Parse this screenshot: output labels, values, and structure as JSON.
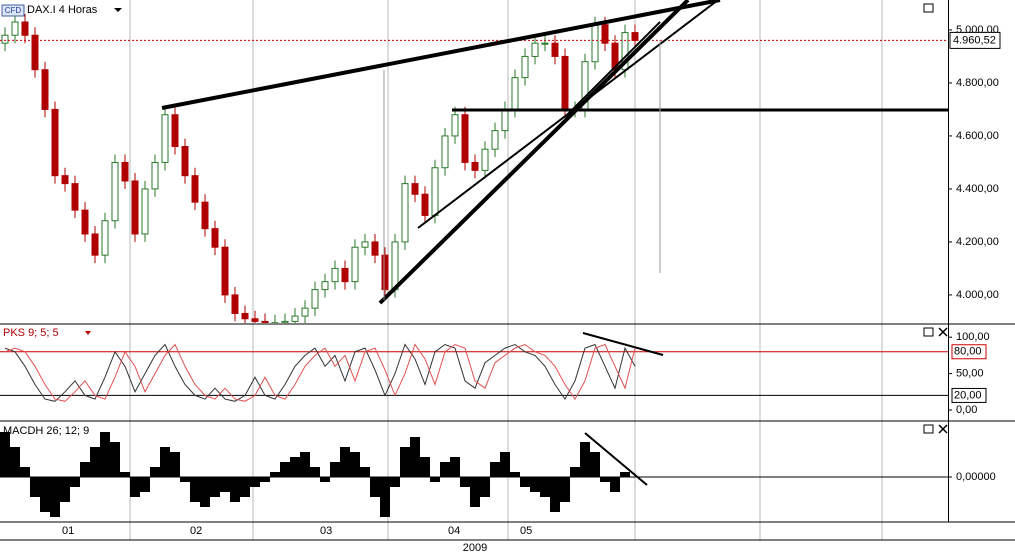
{
  "chart_data": [
    {
      "type": "candlestick",
      "badge": "CFD",
      "title": "DAX.I 4 Horas",
      "open": [
        4950,
        4980,
        5030,
        4980,
        4850,
        4700,
        4450,
        4420,
        4320,
        4230,
        4150,
        4280,
        4500,
        4430,
        4230,
        4400,
        4500,
        4680,
        4560,
        4450,
        4350,
        4250,
        4180,
        4000,
        3930,
        3910,
        3900,
        3890,
        3895,
        3900,
        3920,
        3950,
        4020,
        4050,
        4100,
        4050,
        4180,
        4200,
        4150,
        4020,
        4200,
        4420,
        4380,
        4300,
        4480,
        4600,
        4680,
        4500,
        4470,
        4550,
        4620,
        4700,
        4820,
        4900,
        4950,
        4950,
        4900,
        4700,
        4700,
        4880,
        5020,
        4950,
        4850,
        4990
      ],
      "high": [
        5010,
        5060,
        5060,
        5010,
        4880,
        4730,
        4480,
        4450,
        4350,
        4260,
        4310,
        4530,
        4530,
        4460,
        4430,
        4530,
        4710,
        4710,
        4590,
        4480,
        4380,
        4280,
        4210,
        4030,
        3960,
        3940,
        3930,
        3925,
        3930,
        3950,
        3980,
        4050,
        4080,
        4130,
        4130,
        4210,
        4230,
        4230,
        4180,
        4230,
        4450,
        4450,
        4410,
        4510,
        4630,
        4710,
        4710,
        4530,
        4580,
        4650,
        4730,
        4850,
        4930,
        4980,
        4980,
        4980,
        4930,
        4730,
        4910,
        5050,
        5050,
        4980,
        5020,
        5020
      ],
      "low": [
        4920,
        4950,
        4950,
        4820,
        4670,
        4420,
        4390,
        4290,
        4200,
        4120,
        4120,
        4250,
        4400,
        4200,
        4200,
        4370,
        4470,
        4530,
        4420,
        4320,
        4220,
        4150,
        3970,
        3900,
        3880,
        3870,
        3860,
        3860,
        3865,
        3870,
        3890,
        3920,
        3990,
        4020,
        4020,
        4020,
        4150,
        4120,
        3990,
        3990,
        4170,
        4350,
        4270,
        4270,
        4450,
        4570,
        4470,
        4440,
        4440,
        4520,
        4590,
        4670,
        4790,
        4870,
        4920,
        4870,
        4670,
        4670,
        4670,
        4850,
        4920,
        4820,
        4820,
        4930
      ],
      "close": [
        4980,
        5030,
        4980,
        4850,
        4700,
        4450,
        4420,
        4320,
        4230,
        4150,
        4280,
        4500,
        4430,
        4230,
        4400,
        4500,
        4680,
        4560,
        4450,
        4350,
        4250,
        4180,
        4000,
        3930,
        3910,
        3900,
        3890,
        3895,
        3900,
        3920,
        3950,
        4020,
        4050,
        4100,
        4050,
        4180,
        4200,
        4150,
        4020,
        4200,
        4420,
        4380,
        4300,
        4480,
        4600,
        4680,
        4500,
        4470,
        4550,
        4620,
        4700,
        4820,
        4900,
        4950,
        4950,
        4900,
        4700,
        4700,
        4880,
        5020,
        4950,
        4850,
        4990,
        4960
      ],
      "up_color": "#2a7a2a",
      "down_color": "#b00000",
      "ylim": [
        3894,
        5113
      ],
      "yticks": [
        {
          "value": 5000,
          "label": "5.000,00"
        },
        {
          "value": 4800,
          "label": "4.800,00"
        },
        {
          "value": 4600,
          "label": "4.600,00"
        },
        {
          "value": 4400,
          "label": "4.400,00"
        },
        {
          "value": 4200,
          "label": "4.200,00"
        },
        {
          "value": 4000,
          "label": "4.000,00"
        }
      ],
      "last_price": {
        "value": 4960.52,
        "label": "4.960,52"
      }
    },
    {
      "type": "line",
      "title": "PKS 9; 5; 5",
      "series": [
        {
          "color": "#333333",
          "values": [
            85,
            80,
            60,
            35,
            15,
            12,
            25,
            40,
            20,
            15,
            45,
            80,
            60,
            25,
            50,
            75,
            90,
            60,
            35,
            20,
            15,
            30,
            15,
            12,
            20,
            45,
            20,
            15,
            35,
            60,
            75,
            85,
            60,
            75,
            40,
            80,
            85,
            55,
            20,
            50,
            90,
            70,
            35,
            80,
            90,
            85,
            40,
            30,
            65,
            75,
            85,
            90,
            80,
            75,
            60,
            35,
            15,
            40,
            85,
            90,
            60,
            30,
            85,
            60
          ]
        },
        {
          "color": "#e05050",
          "values": [
            80,
            85,
            80,
            60,
            35,
            15,
            12,
            25,
            40,
            20,
            15,
            45,
            80,
            60,
            25,
            50,
            75,
            90,
            60,
            35,
            20,
            15,
            30,
            15,
            12,
            20,
            45,
            20,
            15,
            35,
            60,
            75,
            85,
            60,
            75,
            40,
            80,
            85,
            55,
            20,
            50,
            90,
            70,
            35,
            80,
            90,
            85,
            40,
            30,
            65,
            75,
            85,
            90,
            80,
            75,
            60,
            35,
            15,
            40,
            85,
            90,
            60,
            30,
            85
          ]
        }
      ],
      "ylim": [
        -11,
        114
      ],
      "yticks": [
        {
          "value": 100,
          "label": "100,00"
        },
        {
          "value": 50,
          "label": "50,00"
        },
        {
          "value": 0,
          "label": "0,00"
        }
      ],
      "levels": [
        {
          "value": 80,
          "label": "80,00",
          "color": "#cc0000"
        },
        {
          "value": 20,
          "label": "20,00",
          "color": "#000000"
        }
      ]
    },
    {
      "type": "bar",
      "title": "MACDH 26; 12; 9",
      "values": [
        45,
        30,
        10,
        -20,
        -35,
        -40,
        -25,
        -10,
        15,
        30,
        45,
        35,
        5,
        -20,
        -15,
        10,
        30,
        25,
        -5,
        -25,
        -30,
        -20,
        -15,
        -25,
        -20,
        -10,
        -5,
        5,
        15,
        20,
        25,
        10,
        -5,
        15,
        30,
        25,
        10,
        -20,
        -40,
        -10,
        30,
        40,
        20,
        -5,
        15,
        20,
        -10,
        -30,
        -20,
        15,
        25,
        5,
        -10,
        -15,
        -20,
        -35,
        -25,
        10,
        35,
        25,
        -5,
        -15,
        5,
        0
      ],
      "color": "#000000",
      "ylim": [
        -45,
        55
      ],
      "yticks": [
        {
          "value": 0,
          "label": "0,00000"
        }
      ]
    }
  ],
  "x_axis": {
    "xlim": [
      -0.5,
      94.3
    ],
    "xticks": [
      12.5,
      24.8,
      38.3,
      50.3,
      63,
      75.5,
      87.7
    ],
    "month_labels": [
      {
        "value": 5.7,
        "label": "01"
      },
      {
        "value": 18.5,
        "label": "02"
      },
      {
        "value": 31.5,
        "label": "03"
      },
      {
        "value": 44.3,
        "label": "04"
      },
      {
        "value": 51.5,
        "label": "05"
      }
    ],
    "year": "2009"
  }
}
